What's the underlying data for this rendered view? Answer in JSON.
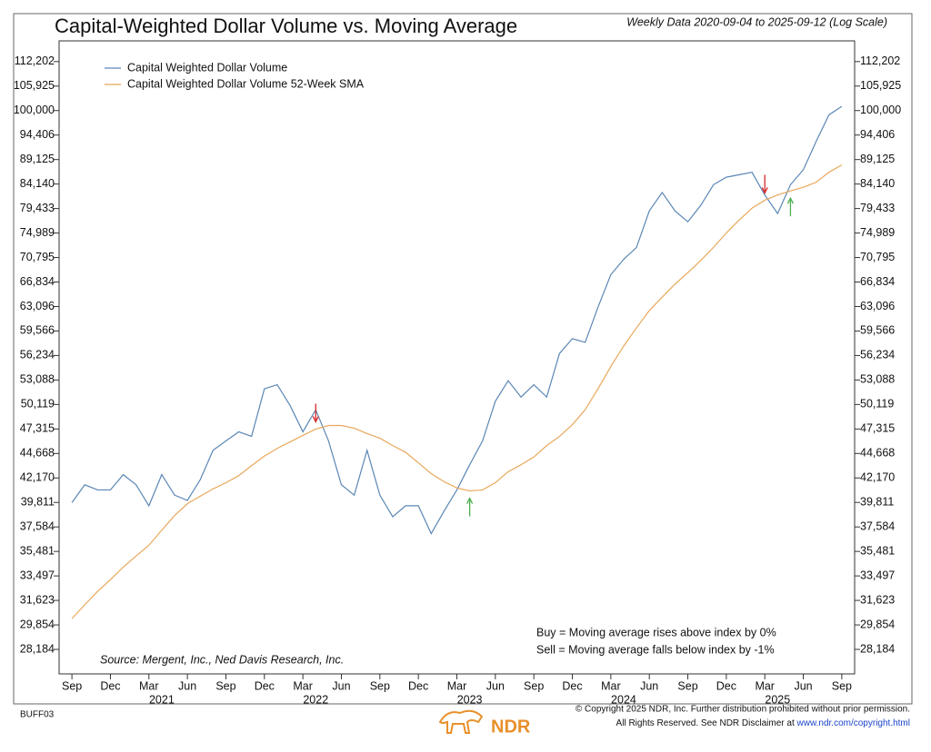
{
  "chart_data": {
    "type": "line",
    "title": "Capital-Weighted Dollar Volume vs. Moving Average",
    "subtitle": "Weekly Data 2020-09-04 to 2025-09-12 (Log Scale)",
    "log_scale": true,
    "grid": false,
    "legend": "upper left",
    "x": [
      "2020-09",
      "2020-10",
      "2020-11",
      "2020-12",
      "2021-01",
      "2021-02",
      "2021-03",
      "2021-04",
      "2021-05",
      "2021-06",
      "2021-07",
      "2021-08",
      "2021-09",
      "2021-10",
      "2021-11",
      "2021-12",
      "2022-01",
      "2022-02",
      "2022-03",
      "2022-04",
      "2022-05",
      "2022-06",
      "2022-07",
      "2022-08",
      "2022-09",
      "2022-10",
      "2022-11",
      "2022-12",
      "2023-01",
      "2023-02",
      "2023-03",
      "2023-04",
      "2023-05",
      "2023-06",
      "2023-07",
      "2023-08",
      "2023-09",
      "2023-10",
      "2023-11",
      "2023-12",
      "2024-01",
      "2024-02",
      "2024-03",
      "2024-04",
      "2024-05",
      "2024-06",
      "2024-07",
      "2024-08",
      "2024-09",
      "2024-10",
      "2024-11",
      "2024-12",
      "2025-01",
      "2025-02",
      "2025-03",
      "2025-04",
      "2025-05",
      "2025-06",
      "2025-07",
      "2025-08",
      "2025-09"
    ],
    "series": [
      {
        "name": "Capital Weighted Dollar Volume",
        "color": "#5b87b5",
        "values": [
          39800,
          41500,
          41000,
          41000,
          42500,
          41500,
          39500,
          42500,
          40500,
          40000,
          42000,
          45000,
          46000,
          47000,
          46500,
          52000,
          52500,
          50000,
          47000,
          49500,
          46000,
          41500,
          40500,
          45000,
          40500,
          38500,
          39500,
          39500,
          37000,
          39000,
          41000,
          43500,
          46000,
          50500,
          53000,
          51000,
          52500,
          51000,
          56500,
          58500,
          58000,
          63000,
          68000,
          70500,
          72500,
          79000,
          82500,
          79000,
          77000,
          80000,
          84000,
          85500,
          86000,
          86500,
          82000,
          78500,
          84000,
          87000,
          93000,
          99000,
          101000
        ]
      },
      {
        "name": "Capital Weighted Dollar Volume 52-Week SMA",
        "color": "#e8a85c",
        "values": [
          30300,
          31300,
          32300,
          33200,
          34200,
          35100,
          36000,
          37300,
          38600,
          39700,
          40400,
          41100,
          41700,
          42400,
          43400,
          44400,
          45200,
          45900,
          46600,
          47300,
          47700,
          47700,
          47400,
          46800,
          46300,
          45500,
          44800,
          43700,
          42600,
          41800,
          41200,
          40900,
          41000,
          41700,
          42800,
          43500,
          44300,
          45500,
          46500,
          47800,
          49500,
          52000,
          54800,
          57500,
          60000,
          62500,
          64500,
          66500,
          68300,
          70300,
          72500,
          75000,
          77300,
          79500,
          81000,
          82000,
          82800,
          83500,
          84500,
          86500,
          88000
        ]
      }
    ],
    "signals": [
      {
        "x": "2022-04",
        "kind": "sell",
        "color": "#d62728"
      },
      {
        "x": "2023-04",
        "kind": "buy",
        "color": "#4caf50"
      },
      {
        "x": "2025-03",
        "kind": "sell",
        "color": "#d62728"
      },
      {
        "x": "2025-05",
        "kind": "buy",
        "color": "#4caf50"
      }
    ],
    "xlim": [
      "2020-08",
      "2025-10"
    ],
    "xticks": [
      {
        "value": "2020-09",
        "label": "Sep"
      },
      {
        "value": "2020-12",
        "label": "Dec"
      },
      {
        "value": "2021-03",
        "label": "Mar"
      },
      {
        "value": "2021-06",
        "label": "Jun"
      },
      {
        "value": "2021-09",
        "label": "Sep"
      },
      {
        "value": "2021-12",
        "label": "Dec"
      },
      {
        "value": "2022-03",
        "label": "Mar"
      },
      {
        "value": "2022-06",
        "label": "Jun"
      },
      {
        "value": "2022-09",
        "label": "Sep"
      },
      {
        "value": "2022-12",
        "label": "Dec"
      },
      {
        "value": "2023-03",
        "label": "Mar"
      },
      {
        "value": "2023-06",
        "label": "Jun"
      },
      {
        "value": "2023-09",
        "label": "Sep"
      },
      {
        "value": "2023-12",
        "label": "Dec"
      },
      {
        "value": "2024-03",
        "label": "Mar"
      },
      {
        "value": "2024-06",
        "label": "Jun"
      },
      {
        "value": "2024-09",
        "label": "Sep"
      },
      {
        "value": "2024-12",
        "label": "Dec"
      },
      {
        "value": "2025-03",
        "label": "Mar"
      },
      {
        "value": "2025-06",
        "label": "Jun"
      },
      {
        "value": "2025-09",
        "label": "Sep"
      }
    ],
    "year_labels": [
      {
        "value": "2021-04",
        "label": "2021"
      },
      {
        "value": "2022-04",
        "label": "2022"
      },
      {
        "value": "2023-04",
        "label": "2023"
      },
      {
        "value": "2024-04",
        "label": "2024"
      },
      {
        "value": "2025-04",
        "label": "2025"
      }
    ],
    "ylim": [
      26607,
      117800
    ],
    "yticks": [
      {
        "value": 28184,
        "label": "28,184"
      },
      {
        "value": 29854,
        "label": "29,854"
      },
      {
        "value": 31623,
        "label": "31,623"
      },
      {
        "value": 33497,
        "label": "33,497"
      },
      {
        "value": 35481,
        "label": "35,481"
      },
      {
        "value": 37584,
        "label": "37,584"
      },
      {
        "value": 39811,
        "label": "39,811"
      },
      {
        "value": 42170,
        "label": "42,170"
      },
      {
        "value": 44668,
        "label": "44,668"
      },
      {
        "value": 47315,
        "label": "47,315"
      },
      {
        "value": 50119,
        "label": "50,119"
      },
      {
        "value": 53088,
        "label": "53,088"
      },
      {
        "value": 56234,
        "label": "56,234"
      },
      {
        "value": 59566,
        "label": "59,566"
      },
      {
        "value": 63096,
        "label": "63,096"
      },
      {
        "value": 66834,
        "label": "66,834"
      },
      {
        "value": 70795,
        "label": "70,795"
      },
      {
        "value": 74989,
        "label": "74,989"
      },
      {
        "value": 79433,
        "label": "79,433"
      },
      {
        "value": 84140,
        "label": "84,140"
      },
      {
        "value": 89125,
        "label": "89,125"
      },
      {
        "value": 94406,
        "label": "94,406"
      },
      {
        "value": 100000,
        "label": "100,000"
      },
      {
        "value": 105925,
        "label": "105,925"
      },
      {
        "value": 112202,
        "label": "112,202"
      }
    ],
    "source": "Source:  Mergent, Inc., Ned Davis Research, Inc.",
    "notes": [
      "Buy = Moving average rises above index by 0%",
      "Sell = Moving average falls below index by -1%"
    ],
    "footer": {
      "code": "BUFF03",
      "copyright": "© Copyright 2025 NDR, Inc. Further distribution prohibited without prior permission.",
      "rights": "All Rights Reserved. See NDR Disclaimer at ",
      "link": "www.ndr.com/copyright.html",
      "logo": "NDR"
    }
  }
}
